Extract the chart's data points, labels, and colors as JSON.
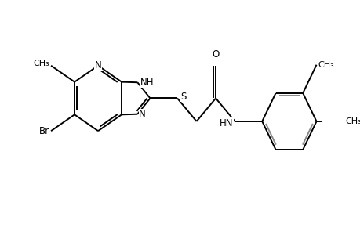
{
  "bg_color": "#ffffff",
  "line_color": "#000000",
  "line_color_gray": "#888888",
  "line_width": 1.4,
  "font_size": 8.5,
  "fig_width": 4.6,
  "fig_height": 3.0,
  "dpi": 100,
  "xlim": [
    -0.5,
    9.5
  ],
  "ylim": [
    -0.5,
    5.5
  ]
}
